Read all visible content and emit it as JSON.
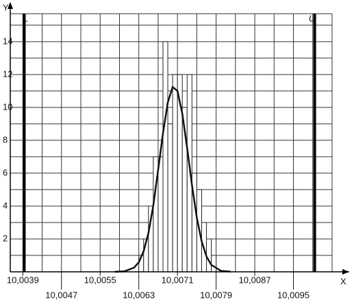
{
  "chart_data": {
    "type": "histogram",
    "x_label": "X",
    "y_label": "Y",
    "bins": [
      10.0063,
      10.0064,
      10.0065,
      10.0066,
      10.0067,
      10.0068,
      10.0069,
      10.007,
      10.0071,
      10.0072,
      10.0073,
      10.0074,
      10.0075,
      10.0076,
      10.0077,
      10.0078,
      10.0079
    ],
    "values": [
      1,
      2,
      4,
      7,
      7,
      14,
      9,
      12,
      12,
      10,
      12,
      6,
      5,
      3,
      2,
      1
    ],
    "bar_color": "#ffffff",
    "curve": {
      "x": [
        10.0058,
        10.006,
        10.0062,
        10.0063,
        10.0064,
        10.0065,
        10.0066,
        10.0067,
        10.0068,
        10.0069,
        10.007,
        10.0071,
        10.0072,
        10.0073,
        10.0074,
        10.0075,
        10.0076,
        10.0077,
        10.0078,
        10.008,
        10.0082
      ],
      "values": [
        0.0,
        0.03,
        0.25,
        0.58,
        1.25,
        2.37,
        4.03,
        6.2,
        8.42,
        10.3,
        11.24,
        11.0,
        9.62,
        7.54,
        5.28,
        3.3,
        1.86,
        0.94,
        0.42,
        0.06,
        0.01
      ],
      "color": "#111111"
    },
    "limits": [
      {
        "name": "L",
        "value": 10.00393
      },
      {
        "name": "U",
        "value": 10.00994
      }
    ],
    "xlim": [
      10.00364,
      10.0103
    ],
    "ylim": [
      0,
      15.7
    ],
    "xticks": [
      {
        "value": 10.0039,
        "label": "10,0039"
      },
      {
        "value": 10.0047,
        "label": "10,0047"
      },
      {
        "value": 10.0055,
        "label": "10,0055"
      },
      {
        "value": 10.0063,
        "label": "10,0063"
      },
      {
        "value": 10.0071,
        "label": "10,0071"
      },
      {
        "value": 10.0079,
        "label": "10,0079"
      },
      {
        "value": 10.0087,
        "label": "10,0087"
      },
      {
        "value": 10.0095,
        "label": "10,0095"
      }
    ],
    "x_minor_ticks": [
      10.0043,
      10.0051,
      10.0059,
      10.0067,
      10.0075,
      10.0083,
      10.0091,
      10.0099
    ],
    "yticks": [
      2,
      4,
      6,
      8,
      10,
      12,
      14
    ],
    "y_minor_ticks": [
      1,
      3,
      5,
      7,
      9,
      11,
      13,
      15
    ],
    "grid": true
  }
}
